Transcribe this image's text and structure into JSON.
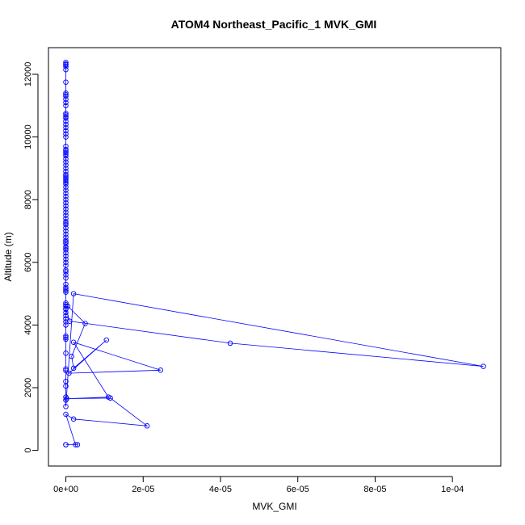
{
  "chart_data": {
    "type": "line",
    "title": "ATOM4 Northeast_Pacific_1 MVK_GMI",
    "xlabel": "MVK_GMI",
    "ylabel": "Altitude (m)",
    "xlim": [
      -4.5e-06,
      0.0001125
    ],
    "ylim": [
      -500,
      12850
    ],
    "x_ticks": [
      0,
      2e-05,
      4e-05,
      6e-05,
      8e-05,
      0.0001
    ],
    "x_tick_labels": [
      "0e+00",
      "2e-05",
      "4e-05",
      "6e-05",
      "8e-05",
      "1e-04"
    ],
    "y_ticks": [
      0,
      2000,
      4000,
      6000,
      8000,
      10000,
      12000
    ],
    "y_tick_labels": [
      "0",
      "2000",
      "4000",
      "6000",
      "8000",
      "10000",
      "12000"
    ],
    "grid": false,
    "legend": "none",
    "colors": {
      "series": "#0000ff",
      "frame": "#000000"
    },
    "series": [
      {
        "x": [
          0,
          0,
          0,
          0,
          0,
          0,
          0,
          0,
          0,
          0,
          0,
          0,
          0,
          0,
          0,
          0,
          0,
          0,
          0,
          0,
          0,
          0,
          0,
          0,
          0,
          0,
          0,
          0,
          0,
          0,
          0,
          0,
          0,
          0,
          0,
          0,
          0,
          0,
          0,
          0,
          0,
          0,
          0,
          0,
          0,
          0,
          0,
          0,
          0,
          0,
          0,
          0,
          0,
          0,
          0,
          0,
          0,
          0,
          0,
          0,
          0,
          0,
          0,
          0,
          0,
          0,
          0,
          0,
          0,
          0,
          0,
          0,
          0,
          0,
          0,
          0,
          0,
          0,
          0,
          0,
          0,
          0,
          0,
          0,
          0,
          0,
          0,
          0,
          0,
          0,
          0,
          0,
          0,
          0,
          0,
          0,
          0,
          0,
          2e-06,
          0.000108,
          4.25e-05,
          1e-06,
          0,
          5e-07,
          5e-06,
          1.5e-06,
          2e-06,
          1.05e-05,
          8e-07,
          2.45e-05,
          2e-06,
          1.1e-05,
          2e-07,
          1.15e-05,
          2.1e-05,
          2e-06,
          0,
          2.5e-06,
          3e-06,
          0,
          0
        ],
        "y": [
          12380,
          12330,
          12300,
          12250,
          12150,
          11750,
          11400,
          11350,
          11300,
          11200,
          11100,
          11000,
          10750,
          10700,
          10650,
          10600,
          10500,
          10400,
          10300,
          10200,
          10100,
          10000,
          9700,
          9600,
          9550,
          9500,
          9450,
          9400,
          9300,
          9200,
          9100,
          9000,
          8900,
          8800,
          8750,
          8700,
          8650,
          8600,
          8550,
          8500,
          8400,
          8300,
          8200,
          8100,
          8000,
          7900,
          7800,
          7700,
          7600,
          7500,
          7400,
          7300,
          7250,
          7200,
          7100,
          7000,
          6900,
          6800,
          6700,
          6650,
          6600,
          6500,
          6450,
          6400,
          6300,
          6200,
          6100,
          6000,
          5900,
          5750,
          5700,
          5600,
          5500,
          5300,
          5200,
          5150,
          5100,
          5050,
          4700,
          4650,
          4600,
          4500,
          4400,
          4300,
          4200,
          4100,
          4000,
          3650,
          3600,
          3550,
          3100,
          2600,
          2550,
          2200,
          2050,
          1700,
          1600,
          1400,
          5000,
          2680,
          3420,
          4120,
          4520,
          4600,
          4050,
          3000,
          2620,
          3520,
          2460,
          2560,
          3450,
          1700,
          1650,
          1670,
          780,
          1000,
          1150,
          180,
          180,
          180,
          180
        ]
      }
    ]
  }
}
